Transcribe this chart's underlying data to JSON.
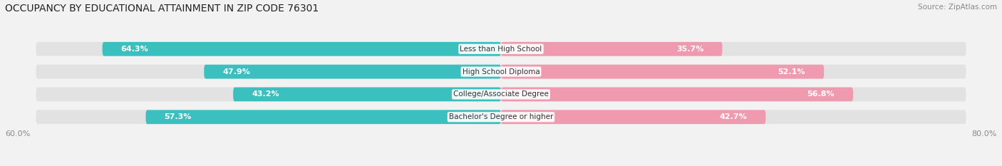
{
  "title": "OCCUPANCY BY EDUCATIONAL ATTAINMENT IN ZIP CODE 76301",
  "source": "Source: ZipAtlas.com",
  "categories": [
    "Less than High School",
    "High School Diploma",
    "College/Associate Degree",
    "Bachelor's Degree or higher"
  ],
  "owner_values": [
    64.3,
    47.9,
    43.2,
    57.3
  ],
  "renter_values": [
    35.7,
    52.1,
    56.8,
    42.7
  ],
  "owner_color": "#3bbfbf",
  "renter_color": "#f09ab0",
  "bar_height": 0.62,
  "x_left_label": "60.0%",
  "x_right_label": "80.0%",
  "background_color": "#f2f2f2",
  "bar_background": "#e2e2e2",
  "title_fontsize": 10,
  "source_fontsize": 7.5,
  "cat_label_fontsize": 7.5,
  "legend_fontsize": 8,
  "value_fontsize": 8
}
